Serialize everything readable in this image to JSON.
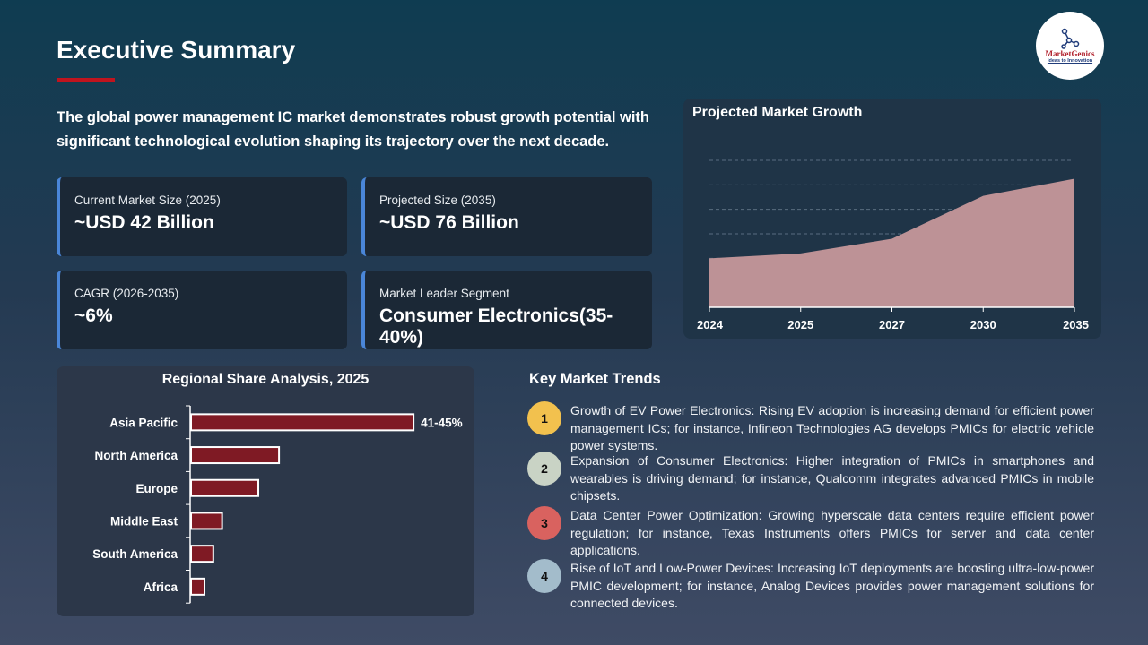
{
  "header": {
    "title": "Executive Summary",
    "intro": "The global power management IC market demonstrates robust growth potential with significant technological evolution shaping its trajectory over the next decade.",
    "logo_text": "MarketGenics",
    "logo_tagline": "Ideas to Innovation",
    "accent": "#c0141e"
  },
  "cards": [
    {
      "label": "Current Market Size (2025)",
      "value": "~USD 42 Billion"
    },
    {
      "label": "Projected Size (2035)",
      "value": "~USD 76 Billion"
    },
    {
      "label": "CAGR (2026-2035)",
      "value": "~6%"
    },
    {
      "label": "Market Leader Segment",
      "value": "Consumer Electronics(35-40%)"
    }
  ],
  "chart_data": [
    {
      "type": "area",
      "title": "Projected Market Growth",
      "x": [
        "2024",
        "2025",
        "2027",
        "2030",
        "2035"
      ],
      "values": [
        2.0,
        2.2,
        2.8,
        4.55,
        5.25
      ],
      "ylim": [
        0,
        6
      ],
      "grid": true,
      "y_tick_labels": false,
      "color": "#bd9296"
    },
    {
      "type": "bar",
      "orientation": "horizontal",
      "title": "Regional Share Analysis, 2025",
      "categories": [
        "Asia Pacific",
        "North America",
        "Europe",
        "Middle East",
        "South America",
        "Africa"
      ],
      "values": [
        43,
        17,
        13,
        6,
        4.3,
        2.6
      ],
      "data_labels": [
        "41-45%",
        "",
        "",
        "",
        "",
        ""
      ],
      "unit": "%",
      "color": "#7f1a24"
    }
  ],
  "trends": {
    "title": "Key Market Trends",
    "items": [
      {
        "num": "1",
        "color": "#f2c14e",
        "text": "Growth of EV Power Electronics: Rising EV adoption is increasing demand for efficient power management ICs; for instance, Infineon Technologies AG develops PMICs for electric vehicle power systems."
      },
      {
        "num": "2",
        "color": "#c9d3c5",
        "text": "Expansion of Consumer Electronics: Higher integration of PMICs in smartphones and wearables is driving demand; for instance, Qualcomm integrates advanced PMICs in mobile chipsets."
      },
      {
        "num": "3",
        "color": "#d9625f",
        "text": "Data Center Power Optimization: Growing hyperscale data centers require efficient power regulation; for instance, Texas Instruments offers PMICs for server and data center applications."
      },
      {
        "num": "4",
        "color": "#a3bccb",
        "text": "Rise of IoT and Low-Power Devices: Increasing IoT deployments are boosting ultra-low-power PMIC development; for instance, Analog Devices provides power management solutions for connected devices."
      }
    ]
  }
}
